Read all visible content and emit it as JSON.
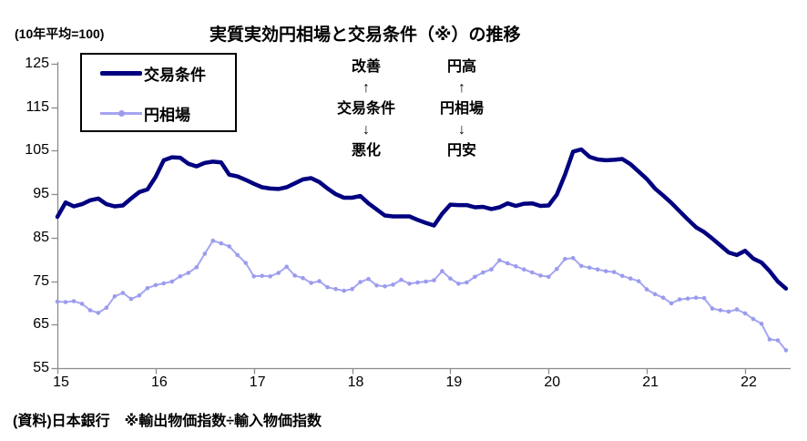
{
  "header": {
    "unit_label": "(10年平均=100)",
    "title": "実質実効円相場と交易条件（※）の推移"
  },
  "legend": {
    "items": [
      {
        "label": "交易条件"
      },
      {
        "label": "円相場"
      }
    ]
  },
  "annotations": {
    "terms_of_trade": [
      "改善",
      "↑",
      "交易条件",
      "↓",
      "悪化"
    ],
    "yen_rate": [
      "円高",
      "↑",
      "円相場",
      "↓",
      "円安"
    ]
  },
  "footer": {
    "source_note": "(資料)日本銀行　※輸出物価指数÷輸入物価指数"
  },
  "colors": {
    "axis": "#8c8c8c",
    "terms_of_trade": "#000080",
    "yen_line": "#a5a5f2",
    "yen_marker": "#9b9bee",
    "text": "#000000",
    "background": "#ffffff"
  },
  "chart_data": {
    "type": "line",
    "title": "実質実効円相場と交易条件（※）の推移",
    "unit_note": "(10年平均=100)",
    "x_unit": "month",
    "x_start": "2015-01",
    "x_end": "2022-06",
    "x_tick_labels": [
      "15",
      "16",
      "17",
      "18",
      "19",
      "20",
      "21",
      "22"
    ],
    "y_ticks": [
      55,
      65,
      75,
      85,
      95,
      105,
      115,
      125
    ],
    "ylim": [
      55,
      125
    ],
    "grid": false,
    "legend_position": "top-left-box",
    "series": [
      {
        "key": "terms-of-trade",
        "name": "交易条件",
        "color": "#000080",
        "line_width": 4.5,
        "markers": false,
        "values": [
          89.8,
          93.1,
          92.2,
          92.7,
          93.6,
          94.0,
          92.7,
          92.2,
          92.4,
          94.0,
          95.5,
          96.1,
          99.0,
          102.8,
          103.5,
          103.4,
          102.0,
          101.4,
          102.2,
          102.5,
          102.3,
          99.5,
          99.1,
          98.3,
          97.4,
          96.6,
          96.3,
          96.2,
          96.6,
          97.5,
          98.4,
          98.7,
          97.8,
          96.3,
          95.0,
          94.2,
          94.2,
          94.6,
          92.9,
          91.5,
          90.1,
          89.9,
          89.9,
          89.9,
          89.1,
          88.4,
          87.8,
          90.5,
          92.6,
          92.5,
          92.5,
          92.0,
          92.1,
          91.6,
          92.0,
          92.9,
          92.3,
          92.8,
          92.9,
          92.3,
          92.4,
          94.9,
          99.5,
          104.8,
          105.3,
          103.6,
          103.0,
          102.8,
          102.9,
          103.1,
          101.9,
          100.2,
          98.5,
          96.3,
          94.7,
          93.0,
          91.1,
          89.2,
          87.4,
          86.3,
          84.8,
          83.2,
          81.6,
          81.0,
          82.0,
          80.2,
          79.3,
          77.3,
          74.9,
          73.3
        ]
      },
      {
        "key": "yen-rate",
        "name": "円相場",
        "color": "#a5a5f2",
        "line_width": 2,
        "markers": true,
        "marker_color": "#9b9bee",
        "values": [
          70.3,
          70.2,
          70.4,
          69.8,
          68.3,
          67.7,
          68.9,
          71.5,
          72.3,
          70.9,
          71.7,
          73.4,
          74.1,
          74.5,
          74.9,
          76.1,
          76.9,
          78.2,
          81.3,
          84.3,
          83.7,
          83.0,
          81.0,
          79.2,
          76.1,
          76.2,
          76.1,
          76.9,
          78.3,
          76.3,
          75.7,
          74.6,
          75.0,
          73.6,
          73.2,
          72.8,
          73.2,
          74.8,
          75.5,
          74.0,
          73.8,
          74.2,
          75.3,
          74.4,
          74.7,
          74.9,
          75.2,
          77.3,
          75.6,
          74.4,
          74.7,
          76.0,
          77.0,
          77.7,
          79.8,
          79.1,
          78.4,
          77.7,
          77.0,
          76.3,
          76.0,
          77.8,
          80.1,
          80.3,
          78.5,
          78.1,
          77.7,
          77.3,
          77.1,
          76.2,
          75.6,
          75.0,
          73.1,
          72.0,
          71.2,
          69.9,
          70.8,
          71.0,
          71.2,
          71.1,
          68.7,
          68.3,
          68.0,
          68.5,
          67.6,
          66.3,
          65.2,
          61.6,
          61.4,
          59.1
        ]
      }
    ]
  }
}
